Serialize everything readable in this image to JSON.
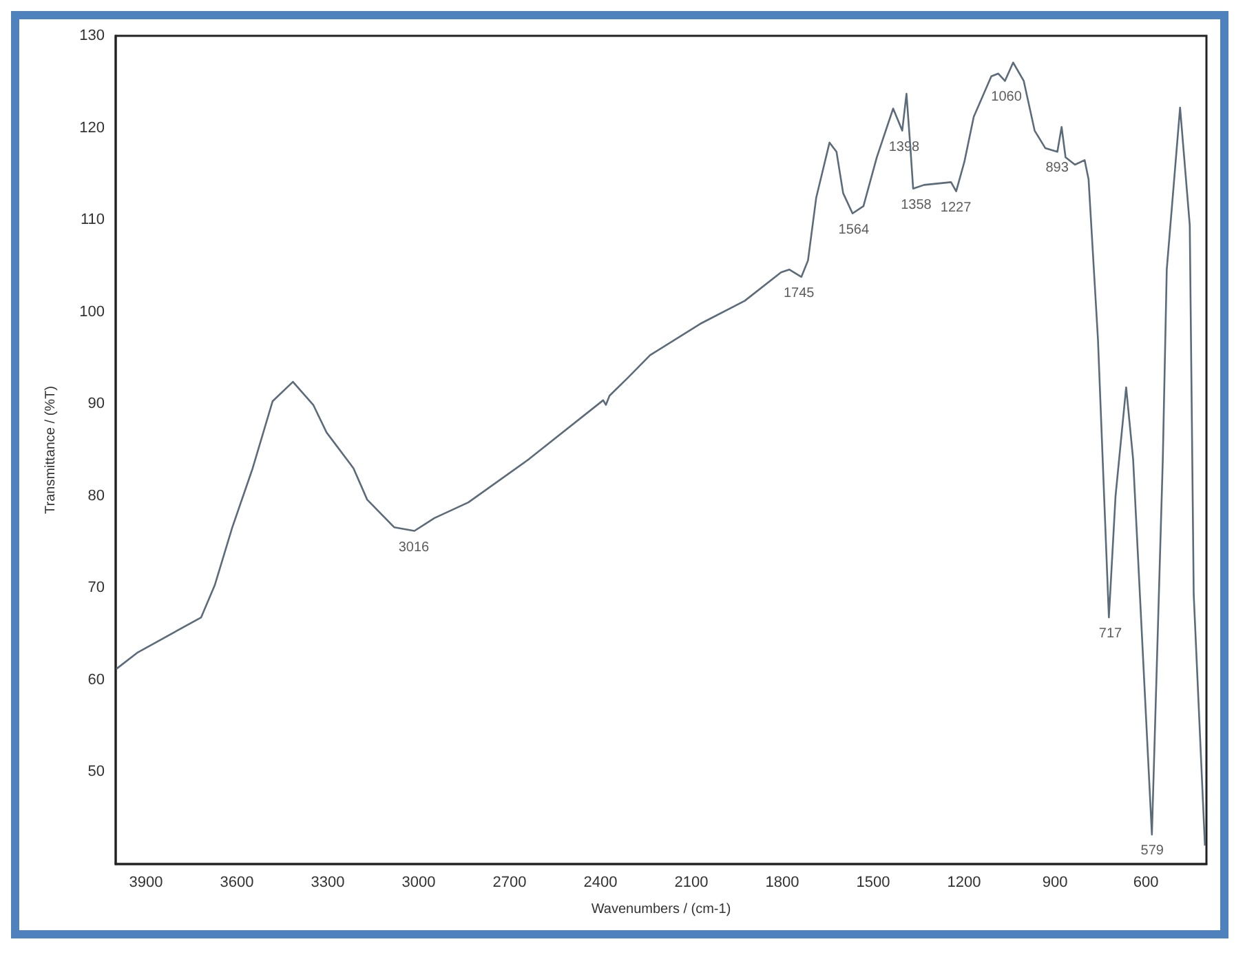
{
  "chart_data": {
    "type": "line",
    "xlabel": "Wavenumbers / (cm-1)",
    "ylabel": "Transmittance / (%T)",
    "xlim": [
      4000,
      400
    ],
    "ylim": [
      40,
      130
    ],
    "xticks": [
      3900,
      3600,
      3300,
      3000,
      2700,
      2400,
      2100,
      1800,
      1500,
      1200,
      900,
      600
    ],
    "yticks": [
      50,
      60,
      70,
      80,
      90,
      100,
      110,
      120,
      130
    ],
    "grid": false,
    "marker": "none",
    "line_style": "solid",
    "series": [
      {
        "color": "#5b6b7a",
        "x": [
          3998,
          3927,
          3718,
          3673,
          3615,
          3548,
          3482,
          3415,
          3348,
          3304,
          3215,
          3170,
          3081,
          3014,
          2948,
          2836,
          2636,
          2391,
          2382,
          2370,
          2311,
          2236,
          2071,
          1924,
          1804,
          1777,
          1737,
          1715,
          1688,
          1644,
          1621,
          1599,
          1568,
          1532,
          1488,
          1434,
          1404,
          1390,
          1377,
          1368,
          1332,
          1243,
          1226,
          1199,
          1168,
          1110,
          1087,
          1065,
          1038,
          1003,
          967,
          932,
          892,
          878,
          865,
          834,
          802,
          789,
          758,
          722,
          700,
          665,
          642,
          580,
          544,
          531,
          487,
          455,
          442,
          405
        ],
        "values": [
          61.2,
          63.0,
          66.8,
          70.3,
          76.6,
          83.0,
          90.3,
          92.4,
          89.9,
          86.9,
          83.0,
          79.6,
          76.6,
          76.2,
          77.6,
          79.3,
          84.0,
          90.4,
          89.9,
          90.9,
          92.8,
          95.3,
          98.7,
          101.2,
          104.3,
          104.6,
          103.8,
          105.6,
          112.4,
          118.4,
          117.4,
          112.9,
          110.7,
          111.5,
          116.8,
          122.1,
          119.7,
          123.7,
          117.8,
          113.4,
          113.8,
          114.1,
          113.1,
          116.3,
          121.2,
          125.6,
          125.9,
          125.1,
          127.1,
          125.1,
          119.7,
          117.8,
          117.4,
          120.1,
          116.8,
          116.0,
          116.5,
          114.4,
          97.0,
          66.8,
          80.0,
          91.8,
          84.0,
          43.2,
          84.0,
          104.6,
          122.2,
          109.4,
          69.3,
          42.0
        ]
      }
    ],
    "annotations": [
      {
        "text": "3016",
        "x": 3016,
        "y": 76.2
      },
      {
        "text": "1745",
        "x": 1745,
        "y": 103.8
      },
      {
        "text": "1564",
        "x": 1564,
        "y": 110.7
      },
      {
        "text": "1398",
        "x": 1398,
        "y": 119.7
      },
      {
        "text": "1358",
        "x": 1358,
        "y": 113.4
      },
      {
        "text": "1227",
        "x": 1227,
        "y": 113.1
      },
      {
        "text": "1060",
        "x": 1060,
        "y": 125.1
      },
      {
        "text": "893",
        "x": 893,
        "y": 117.4
      },
      {
        "text": "717",
        "x": 717,
        "y": 66.8
      },
      {
        "text": "579",
        "x": 579,
        "y": 43.2
      }
    ]
  }
}
